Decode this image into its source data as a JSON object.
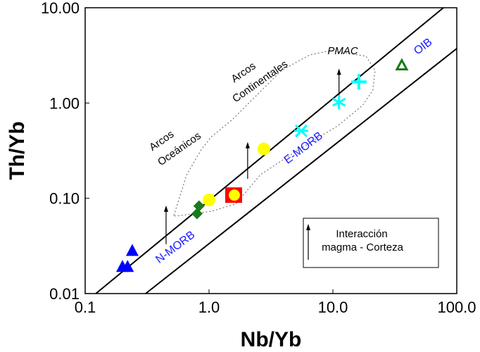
{
  "chart_data": {
    "type": "scatter",
    "xlabel": "Nb/Yb",
    "ylabel": "Th/Yb",
    "xscale": "log",
    "yscale": "log",
    "xlim": [
      0.1,
      100
    ],
    "ylim": [
      0.01,
      10
    ],
    "grid": false,
    "x_ticks": [
      "0.1",
      "1.0",
      "10.0",
      "100.0"
    ],
    "x_tick_values": [
      0.1,
      1,
      10,
      100
    ],
    "y_ticks": [
      "0.01",
      "0.10",
      "1.00",
      "10.00"
    ],
    "y_tick_values": [
      0.01,
      0.1,
      1,
      10
    ],
    "series": [
      {
        "marker": "filled-triangle",
        "color": "#0000ff",
        "points": [
          [
            0.2,
            0.019
          ],
          [
            0.22,
            0.019
          ],
          [
            0.24,
            0.028
          ]
        ]
      },
      {
        "marker": "filled-diamond",
        "color": "#1a7a1a",
        "points": [
          [
            0.8,
            0.069
          ],
          [
            0.83,
            0.083
          ]
        ]
      },
      {
        "marker": "filled-circle",
        "color": "#ffff00",
        "points": [
          [
            1.0,
            0.096
          ],
          [
            2.77,
            0.33
          ]
        ]
      },
      {
        "marker": "square-with-circle",
        "color": "#ff0000",
        "inner_color": "#ffff00",
        "points": [
          [
            1.58,
            0.108
          ]
        ]
      },
      {
        "marker": "x-cross",
        "color": "#00ffff",
        "points": [
          [
            5.55,
            0.51
          ]
        ]
      },
      {
        "marker": "asterisk",
        "color": "#00ffff",
        "points": [
          [
            11.2,
            1.02
          ]
        ]
      },
      {
        "marker": "plus",
        "color": "#00ffff",
        "points": [
          [
            16.2,
            1.67
          ]
        ]
      },
      {
        "marker": "open-triangle",
        "color": "#1a7a1a",
        "points": [
          [
            36,
            2.5
          ]
        ]
      }
    ],
    "mantle_array_lines": [
      [
        [
          0.122,
          0.01
        ],
        [
          78,
          10
        ]
      ],
      [
        [
          0.308,
          0.01
        ],
        [
          100,
          3.73
        ]
      ]
    ],
    "field_outline": [
      [
        0.52,
        0.066
      ],
      [
        0.66,
        0.177
      ],
      [
        0.86,
        0.32
      ],
      [
        1.04,
        0.44
      ],
      [
        1.54,
        0.67
      ],
      [
        3.85,
        2.2
      ],
      [
        6.5,
        3.2
      ],
      [
        9.6,
        3.55
      ],
      [
        18.5,
        3.1
      ],
      [
        21.9,
        2.2
      ],
      [
        21,
        1.36
      ],
      [
        17.3,
        0.94
      ],
      [
        11,
        0.58
      ],
      [
        5,
        0.31
      ],
      [
        2.6,
        0.177
      ],
      [
        1.64,
        0.087
      ],
      [
        1.04,
        0.073
      ],
      [
        0.54,
        0.065
      ]
    ],
    "arrows": [
      [
        [
          0.45,
          0.033
        ],
        [
          0.45,
          0.084
        ]
      ],
      [
        [
          2.05,
          0.16
        ],
        [
          2.05,
          0.39
        ]
      ],
      [
        [
          11.2,
          1.02
        ],
        [
          11.2,
          2.3
        ]
      ]
    ],
    "annotations": {
      "arcos_oceanicos": [
        "Arcos",
        "Oceánicos"
      ],
      "arcos_continentales": [
        "Arcos",
        "Continentales"
      ],
      "pmac": "PMAC",
      "n_morb": "N-MORB",
      "e_morb": "E-MORB",
      "oib": "OIB"
    },
    "legend": {
      "placement": "lower-right",
      "lines": [
        "Interacción",
        "magma - Corteza"
      ]
    }
  }
}
